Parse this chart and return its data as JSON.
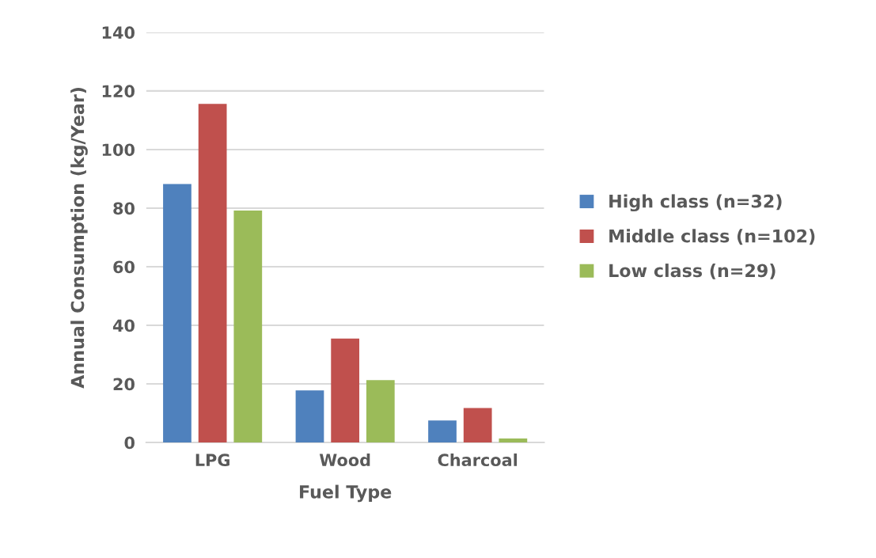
{
  "chart_data": {
    "type": "bar",
    "xlabel": "Fuel Type",
    "ylabel": "Annual Consumption (kg/Year)",
    "categories": [
      "LPG",
      "Wood",
      "Charcoal"
    ],
    "series": [
      {
        "name": "High class (n=32)",
        "color": "#4f81bd",
        "values": [
          88.2,
          17.8,
          7.5
        ]
      },
      {
        "name": "Middle class (n=102)",
        "color": "#c0504d",
        "values": [
          115.6,
          35.5,
          11.8
        ]
      },
      {
        "name": "Low class (n=29)",
        "color": "#9bbb59",
        "values": [
          79.2,
          21.3,
          1.4
        ]
      }
    ],
    "ylim": [
      0,
      140
    ],
    "yticks": [
      0,
      20,
      40,
      60,
      80,
      100,
      120,
      140
    ],
    "grid": "y",
    "legend": "right"
  }
}
